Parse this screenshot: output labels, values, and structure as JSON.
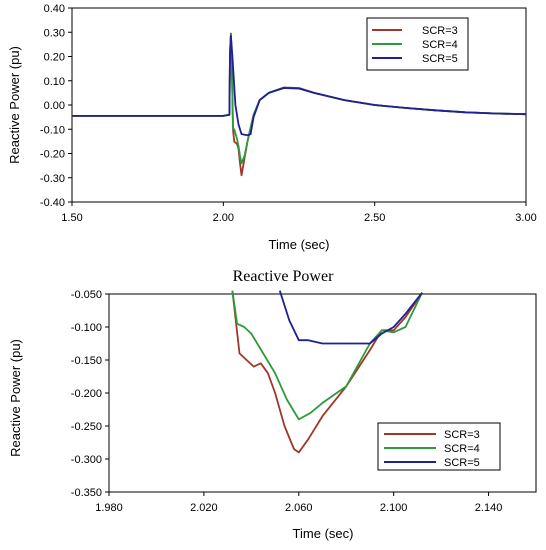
{
  "chart_data": [
    {
      "type": "line",
      "title": "",
      "xlabel": "Time (sec)",
      "ylabel": "Reactive Power  (pu)",
      "xlim": [
        1.5,
        3.0
      ],
      "ylim": [
        -0.4,
        0.4
      ],
      "xticks": [
        1.5,
        2.0,
        2.5,
        3.0
      ],
      "xtick_labels": [
        "1.50",
        "2.00",
        "2.50",
        "3.00"
      ],
      "yticks": [
        -0.4,
        -0.3,
        -0.2,
        -0.1,
        0.0,
        0.1,
        0.2,
        0.3,
        0.4
      ],
      "ytick_labels": [
        "-0.40",
        "-0.30",
        "-0.20",
        "-0.10",
        "0.00",
        "0.10",
        "0.20",
        "0.30",
        "0.40"
      ],
      "grid": false,
      "legend": "top-right",
      "series": [
        {
          "name": "SCR=3",
          "color": "#a0362a",
          "points": [
            [
              1.5,
              -0.045
            ],
            [
              2.0,
              -0.045
            ],
            [
              2.02,
              -0.04
            ],
            [
              2.022,
              0.22
            ],
            [
              2.025,
              0.295
            ],
            [
              2.028,
              0.18
            ],
            [
              2.032,
              -0.1
            ],
            [
              2.036,
              -0.15
            ],
            [
              2.04,
              -0.155
            ],
            [
              2.045,
              -0.16
            ],
            [
              2.05,
              -0.18
            ],
            [
              2.055,
              -0.24
            ],
            [
              2.06,
              -0.29
            ],
            [
              2.07,
              -0.22
            ],
            [
              2.08,
              -0.15
            ],
            [
              2.1,
              -0.04
            ],
            [
              2.12,
              0.02
            ],
            [
              2.15,
              0.05
            ],
            [
              2.2,
              0.072
            ],
            [
              2.25,
              0.07
            ],
            [
              2.3,
              0.05
            ],
            [
              2.4,
              0.02
            ],
            [
              2.5,
              0.0
            ],
            [
              2.6,
              -0.012
            ],
            [
              2.7,
              -0.022
            ],
            [
              2.8,
              -0.03
            ],
            [
              2.9,
              -0.035
            ],
            [
              3.0,
              -0.038
            ]
          ]
        },
        {
          "name": "SCR=4",
          "color": "#2e9a3a",
          "points": [
            [
              1.5,
              -0.045
            ],
            [
              2.0,
              -0.045
            ],
            [
              2.02,
              -0.04
            ],
            [
              2.022,
              0.22
            ],
            [
              2.025,
              0.29
            ],
            [
              2.028,
              0.17
            ],
            [
              2.032,
              -0.1
            ],
            [
              2.036,
              -0.1
            ],
            [
              2.045,
              -0.14
            ],
            [
              2.05,
              -0.17
            ],
            [
              2.055,
              -0.21
            ],
            [
              2.06,
              -0.24
            ],
            [
              2.07,
              -0.21
            ],
            [
              2.08,
              -0.15
            ],
            [
              2.1,
              -0.04
            ],
            [
              2.12,
              0.02
            ],
            [
              2.15,
              0.05
            ],
            [
              2.2,
              0.07
            ],
            [
              2.25,
              0.068
            ],
            [
              2.3,
              0.05
            ],
            [
              2.4,
              0.02
            ],
            [
              2.5,
              0.0
            ],
            [
              2.6,
              -0.012
            ],
            [
              2.7,
              -0.022
            ],
            [
              2.8,
              -0.03
            ],
            [
              2.9,
              -0.035
            ],
            [
              3.0,
              -0.038
            ]
          ]
        },
        {
          "name": "SCR=5",
          "color": "#1f1f96",
          "points": [
            [
              1.5,
              -0.045
            ],
            [
              2.0,
              -0.045
            ],
            [
              2.02,
              -0.04
            ],
            [
              2.022,
              0.2
            ],
            [
              2.025,
              0.285
            ],
            [
              2.03,
              0.2
            ],
            [
              2.04,
              0.0
            ],
            [
              2.05,
              -0.08
            ],
            [
              2.06,
              -0.12
            ],
            [
              2.08,
              -0.125
            ],
            [
              2.09,
              -0.12
            ],
            [
              2.1,
              -0.05
            ],
            [
              2.12,
              0.02
            ],
            [
              2.15,
              0.05
            ],
            [
              2.2,
              0.07
            ],
            [
              2.25,
              0.068
            ],
            [
              2.3,
              0.05
            ],
            [
              2.4,
              0.02
            ],
            [
              2.5,
              0.0
            ],
            [
              2.6,
              -0.012
            ],
            [
              2.7,
              -0.022
            ],
            [
              2.8,
              -0.03
            ],
            [
              2.9,
              -0.035
            ],
            [
              3.0,
              -0.038
            ]
          ]
        }
      ]
    },
    {
      "type": "line",
      "title": "Reactive Power",
      "xlabel": "Time (sec)",
      "ylabel": "Reactive Power  (pu)",
      "xlim": [
        1.98,
        2.16
      ],
      "ylim": [
        -0.35,
        -0.05
      ],
      "xticks": [
        1.98,
        2.02,
        2.06,
        2.1,
        2.14
      ],
      "xtick_labels": [
        "1.980",
        "2.020",
        "2.060",
        "2.100",
        "2.140"
      ],
      "yticks": [
        -0.35,
        -0.3,
        -0.25,
        -0.2,
        -0.15,
        -0.1,
        -0.05
      ],
      "ytick_labels": [
        "-0.350",
        "-0.300",
        "-0.250",
        "-0.200",
        "-0.150",
        "-0.100",
        "-0.050"
      ],
      "grid": false,
      "legend": "bottom-right",
      "series": [
        {
          "name": "SCR=3",
          "color": "#a0362a",
          "points": [
            [
              2.032,
              -0.045
            ],
            [
              2.035,
              -0.14
            ],
            [
              2.038,
              -0.15
            ],
            [
              2.041,
              -0.16
            ],
            [
              2.044,
              -0.155
            ],
            [
              2.047,
              -0.17
            ],
            [
              2.05,
              -0.2
            ],
            [
              2.054,
              -0.25
            ],
            [
              2.058,
              -0.285
            ],
            [
              2.06,
              -0.29
            ],
            [
              2.064,
              -0.27
            ],
            [
              2.07,
              -0.235
            ],
            [
              2.08,
              -0.19
            ],
            [
              2.09,
              -0.135
            ],
            [
              2.095,
              -0.105
            ],
            [
              2.1,
              -0.105
            ],
            [
              2.105,
              -0.085
            ],
            [
              2.112,
              -0.048
            ]
          ]
        },
        {
          "name": "SCR=4",
          "color": "#2e9a3a",
          "points": [
            [
              2.032,
              -0.045
            ],
            [
              2.034,
              -0.095
            ],
            [
              2.037,
              -0.1
            ],
            [
              2.04,
              -0.11
            ],
            [
              2.045,
              -0.14
            ],
            [
              2.05,
              -0.17
            ],
            [
              2.055,
              -0.21
            ],
            [
              2.06,
              -0.24
            ],
            [
              2.065,
              -0.23
            ],
            [
              2.07,
              -0.215
            ],
            [
              2.08,
              -0.19
            ],
            [
              2.09,
              -0.125
            ],
            [
              2.095,
              -0.105
            ],
            [
              2.1,
              -0.108
            ],
            [
              2.105,
              -0.1
            ],
            [
              2.112,
              -0.048
            ]
          ]
        },
        {
          "name": "SCR=5",
          "color": "#1f1f96",
          "points": [
            [
              2.052,
              -0.045
            ],
            [
              2.056,
              -0.09
            ],
            [
              2.06,
              -0.12
            ],
            [
              2.064,
              -0.12
            ],
            [
              2.07,
              -0.125
            ],
            [
              2.08,
              -0.125
            ],
            [
              2.09,
              -0.125
            ],
            [
              2.095,
              -0.11
            ],
            [
              2.1,
              -0.1
            ],
            [
              2.105,
              -0.08
            ],
            [
              2.112,
              -0.048
            ]
          ]
        }
      ]
    }
  ]
}
